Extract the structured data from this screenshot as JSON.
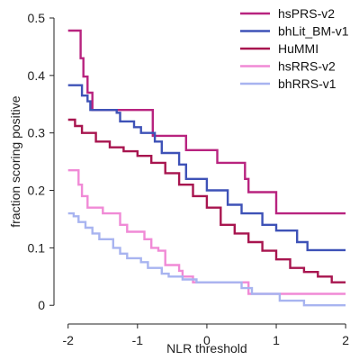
{
  "chart_data": {
    "type": "line",
    "title": "",
    "xlabel": "NLR threshold",
    "ylabel": "fraction scoring positive",
    "xlim": [
      -2.1,
      2.05
    ],
    "ylim": [
      -0.02,
      0.5
    ],
    "xticks": [
      -2,
      -1,
      0,
      1,
      2
    ],
    "xtick_labels": [
      "-2",
      "-1",
      "0",
      "1",
      "2"
    ],
    "yticks": [
      0,
      0.1,
      0.2,
      0.3,
      0.4,
      0.5
    ],
    "ytick_labels": [
      "0",
      "0.1",
      "0.2",
      "0.3",
      "0.4",
      "0.5"
    ],
    "grid": false,
    "legend_position": "top-right",
    "series": [
      {
        "name": "hsPRS-v2",
        "color": "#b8237f",
        "x": [
          -2.0,
          -1.88,
          -1.82,
          -1.78,
          -1.72,
          -1.65,
          -1.55,
          -1.1,
          -0.78,
          -0.4,
          -0.3,
          0.15,
          0.55,
          0.6,
          1.0,
          2.0
        ],
        "y": [
          0.478,
          0.478,
          0.43,
          0.398,
          0.37,
          0.34,
          0.34,
          0.34,
          0.295,
          0.295,
          0.27,
          0.248,
          0.22,
          0.197,
          0.16,
          0.16
        ]
      },
      {
        "name": "bhLit_BM-v1",
        "color": "#3e52b7",
        "x": [
          -2.0,
          -1.85,
          -1.8,
          -1.72,
          -1.68,
          -1.6,
          -1.3,
          -1.25,
          -1.05,
          -0.95,
          -0.75,
          -0.65,
          -0.4,
          -0.3,
          0.0,
          0.3,
          0.5,
          0.8,
          1.0,
          1.3,
          1.45,
          2.0
        ],
        "y": [
          0.383,
          0.383,
          0.365,
          0.355,
          0.34,
          0.34,
          0.335,
          0.32,
          0.31,
          0.3,
          0.285,
          0.265,
          0.245,
          0.22,
          0.2,
          0.175,
          0.16,
          0.14,
          0.13,
          0.11,
          0.096,
          0.096
        ]
      },
      {
        "name": "HuMMI",
        "color": "#a8154f",
        "x": [
          -2.0,
          -1.9,
          -1.8,
          -1.6,
          -1.4,
          -1.2,
          -1.0,
          -0.8,
          -0.6,
          -0.4,
          -0.2,
          0.0,
          0.2,
          0.4,
          0.6,
          0.8,
          1.0,
          1.2,
          1.4,
          1.6,
          1.8,
          2.0
        ],
        "y": [
          0.323,
          0.312,
          0.3,
          0.285,
          0.275,
          0.268,
          0.26,
          0.248,
          0.23,
          0.21,
          0.19,
          0.17,
          0.14,
          0.125,
          0.11,
          0.095,
          0.08,
          0.065,
          0.058,
          0.05,
          0.04,
          0.04
        ]
      },
      {
        "name": "hsRRS-v2",
        "color": "#f08ad6",
        "x": [
          -2.0,
          -1.9,
          -1.85,
          -1.8,
          -1.72,
          -1.5,
          -1.25,
          -1.15,
          -0.9,
          -0.8,
          -0.7,
          -0.6,
          -0.4,
          -0.35,
          -0.2,
          0.4,
          0.6,
          1.0,
          2.0
        ],
        "y": [
          0.235,
          0.235,
          0.21,
          0.19,
          0.17,
          0.16,
          0.14,
          0.128,
          0.115,
          0.1,
          0.095,
          0.07,
          0.06,
          0.05,
          0.04,
          0.04,
          0.02,
          0.02,
          0.02
        ]
      },
      {
        "name": "bhRRS-v1",
        "color": "#a8b4f0",
        "x": [
          -2.0,
          -1.92,
          -1.85,
          -1.75,
          -1.65,
          -1.55,
          -1.35,
          -1.25,
          -1.15,
          -0.95,
          -0.85,
          -0.65,
          -0.55,
          -0.35,
          -0.15,
          0.05,
          0.5,
          0.65,
          0.8,
          1.0,
          1.05,
          1.4,
          2.0
        ],
        "y": [
          0.16,
          0.155,
          0.145,
          0.135,
          0.125,
          0.115,
          0.1,
          0.09,
          0.082,
          0.075,
          0.065,
          0.055,
          0.05,
          0.045,
          0.04,
          0.04,
          0.03,
          0.02,
          0.02,
          0.02,
          0.008,
          0.0,
          0.0
        ]
      }
    ]
  }
}
